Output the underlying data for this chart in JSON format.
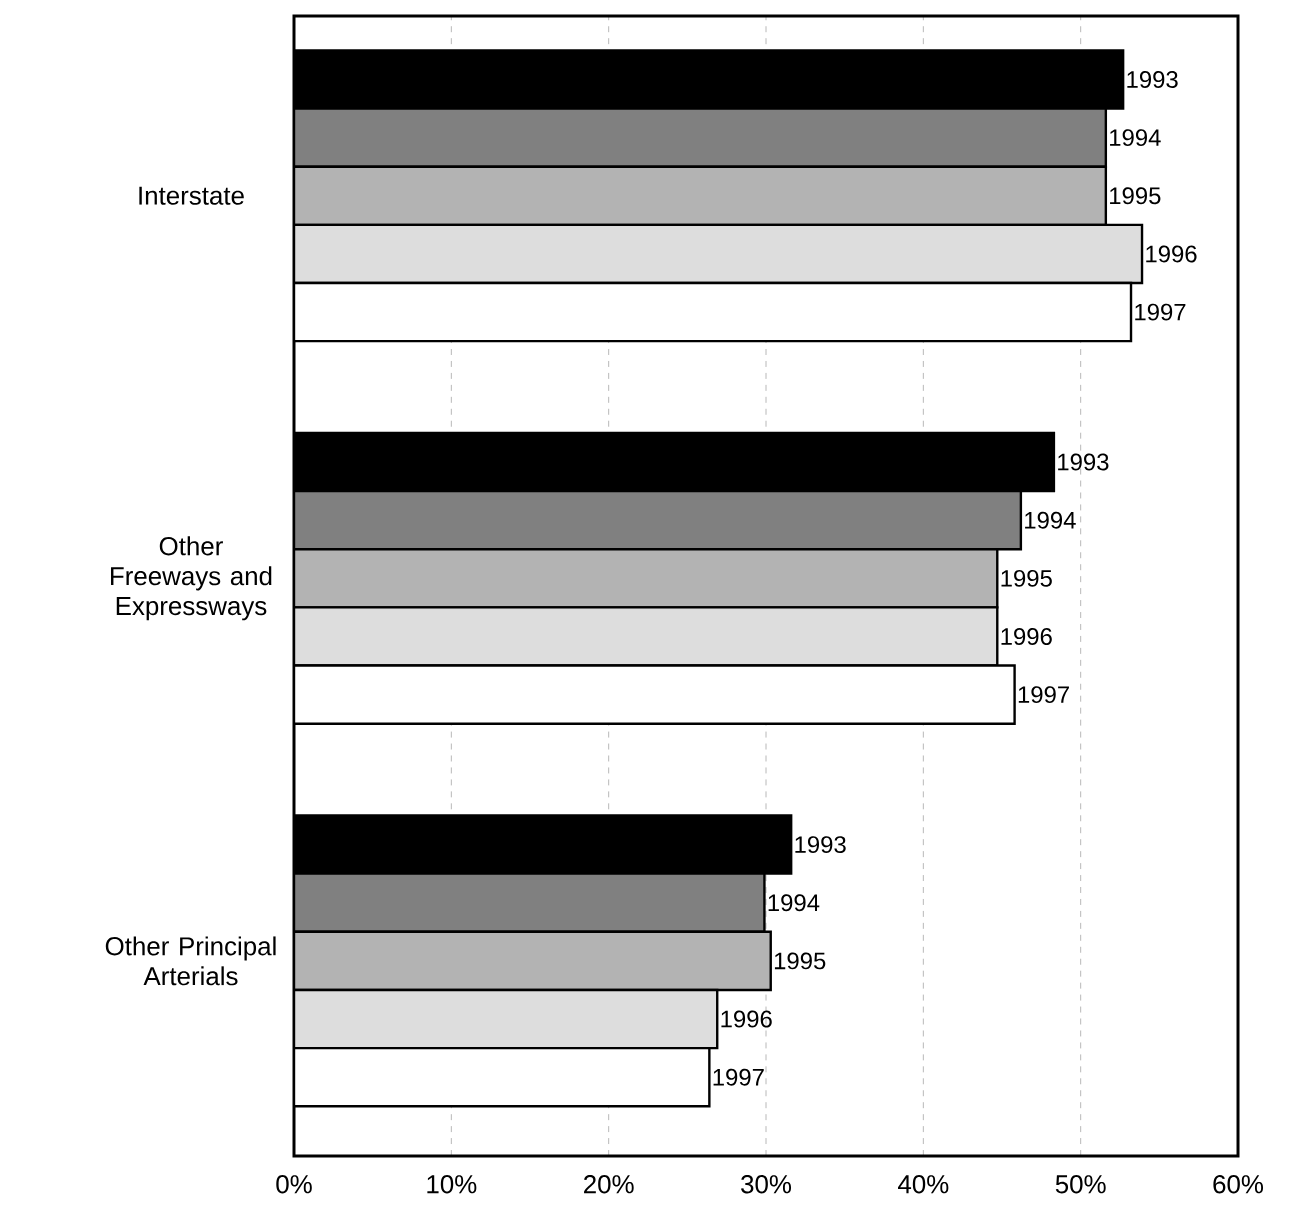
{
  "chart_data": {
    "type": "bar",
    "orientation": "horizontal",
    "categories": [
      "Interstate",
      "Other Freeways and Expressways",
      "Other Principal Arterials"
    ],
    "series": [
      {
        "name": "1993",
        "color": "#000000",
        "values": [
          52.7,
          48.3,
          31.6
        ]
      },
      {
        "name": "1994",
        "color": "#808080",
        "values": [
          51.6,
          46.2,
          29.9
        ]
      },
      {
        "name": "1995",
        "color": "#b3b3b3",
        "values": [
          51.6,
          44.7,
          30.3
        ]
      },
      {
        "name": "1996",
        "color": "#dddddd",
        "values": [
          53.9,
          44.7,
          26.9
        ]
      },
      {
        "name": "1997",
        "color": "#ffffff",
        "values": [
          53.2,
          45.8,
          26.4
        ]
      }
    ],
    "xlim": [
      0,
      60
    ],
    "xticks": [
      {
        "value": 0,
        "label": "0%"
      },
      {
        "value": 10,
        "label": "10%"
      },
      {
        "value": 20,
        "label": "20%"
      },
      {
        "value": 30,
        "label": "30%"
      },
      {
        "value": 40,
        "label": "40%"
      },
      {
        "value": 50,
        "label": "50%"
      },
      {
        "value": 60,
        "label": "60%"
      }
    ],
    "grid": "x",
    "legend": false
  }
}
